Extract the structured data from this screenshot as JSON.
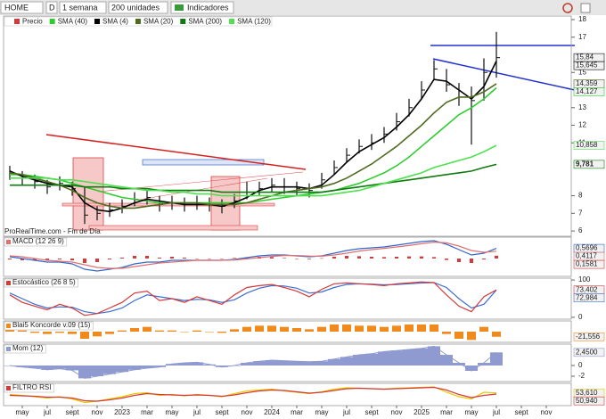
{
  "toolbar": {
    "symbol": "HOME",
    "d": "D",
    "period": "1 semana",
    "units": "200 unidades",
    "indicators": "Indicadores"
  },
  "chart_data": [
    {
      "type": "ohlc",
      "source": "ProRealTime.com - Fin de Día",
      "x": [
        3,
        4,
        5,
        6,
        7,
        8,
        9,
        10,
        11,
        12,
        13,
        14,
        15,
        16,
        17,
        18,
        19,
        20,
        21,
        22,
        23,
        24,
        25,
        26,
        27,
        28,
        29,
        30,
        31,
        32,
        33,
        34,
        35,
        36,
        37,
        38,
        39,
        40,
        41,
        42
      ],
      "ylim": [
        5.7,
        18.2
      ],
      "yticks": [
        6,
        7,
        8,
        11,
        12,
        13,
        15,
        17,
        18
      ],
      "series": [
        {
          "name": "Precio",
          "color": "#111111",
          "last_value_label": "15,84",
          "values": [
            9.3,
            9.0,
            8.8,
            8.5,
            8.7,
            8.4,
            6.9,
            7.0,
            7.2,
            7.4,
            7.8,
            7.9,
            7.5,
            7.6,
            7.5,
            7.6,
            7.5,
            7.4,
            7.7,
            8.2,
            8.4,
            8.6,
            8.5,
            8.4,
            8.3,
            8.9,
            9.6,
            10.3,
            10.8,
            11.0,
            11.5,
            12.2,
            13.0,
            14.0,
            15.2,
            14.3,
            13.6,
            13.4,
            15.0,
            15.84
          ],
          "high": [
            9.7,
            9.4,
            9.2,
            8.9,
            9.1,
            8.8,
            8.5,
            7.4,
            7.6,
            7.8,
            8.2,
            8.3,
            8.0,
            8.0,
            7.9,
            8.0,
            7.9,
            7.8,
            8.1,
            8.8,
            8.8,
            9.0,
            9.0,
            8.8,
            8.7,
            9.3,
            10.0,
            10.7,
            11.2,
            11.5,
            11.9,
            12.7,
            13.5,
            14.5,
            15.7,
            15.2,
            14.4,
            14.2,
            15.8,
            17.3
          ],
          "low": [
            8.9,
            8.6,
            8.4,
            8.1,
            8.3,
            8.0,
            6.4,
            6.6,
            6.8,
            7.0,
            7.4,
            7.5,
            7.1,
            7.2,
            7.1,
            7.2,
            7.1,
            7.0,
            7.3,
            7.8,
            8.0,
            8.2,
            8.1,
            8.0,
            7.9,
            8.4,
            9.2,
            9.9,
            10.4,
            10.6,
            11.0,
            11.7,
            12.5,
            13.5,
            14.6,
            13.9,
            13.1,
            10.9,
            13.4,
            14.7
          ]
        },
        {
          "name": "SMA (40)",
          "color": "#2fcc2f",
          "last_value_label": "14,127",
          "values": [
            9.2,
            9.2,
            9.1,
            9.0,
            8.9,
            8.7,
            8.5,
            8.3,
            8.1,
            7.9,
            7.8,
            7.7,
            7.6,
            7.6,
            7.6,
            7.6,
            7.6,
            7.6,
            7.6,
            7.6,
            7.7,
            7.8,
            7.9,
            8.0,
            8.1,
            8.2,
            8.3,
            8.5,
            8.7,
            9.0,
            9.3,
            9.7,
            10.2,
            10.8,
            11.4,
            12.0,
            12.6,
            13.0,
            13.5,
            14.127
          ]
        },
        {
          "name": "SMA (4)",
          "color": "#000000",
          "last_value_label": "15,645",
          "values": [
            9.4,
            9.1,
            8.9,
            8.7,
            8.6,
            8.5,
            7.6,
            7.2,
            7.1,
            7.3,
            7.6,
            7.8,
            7.7,
            7.6,
            7.5,
            7.5,
            7.5,
            7.4,
            7.6,
            7.9,
            8.3,
            8.5,
            8.5,
            8.5,
            8.4,
            8.6,
            9.2,
            9.9,
            10.5,
            10.9,
            11.3,
            11.9,
            12.6,
            13.5,
            14.6,
            14.5,
            14.0,
            13.5,
            14.2,
            15.645
          ]
        },
        {
          "name": "SMA (20)",
          "color": "#4f6b1f",
          "last_value_label": "14,359",
          "values": [
            9.3,
            9.2,
            9.0,
            8.8,
            8.6,
            8.3,
            7.9,
            7.6,
            7.4,
            7.3,
            7.3,
            7.4,
            7.5,
            7.6,
            7.6,
            7.6,
            7.5,
            7.5,
            7.5,
            7.6,
            7.8,
            8.0,
            8.2,
            8.3,
            8.4,
            8.5,
            8.7,
            9.0,
            9.4,
            9.8,
            10.3,
            10.8,
            11.4,
            12.0,
            12.7,
            13.3,
            13.6,
            13.6,
            13.9,
            14.359
          ]
        },
        {
          "name": "SMA (200)",
          "color": "#0f7a0f",
          "last_value_label": "9,781",
          "values": [
            8.6,
            8.6,
            8.6,
            8.6,
            8.6,
            8.6,
            8.5,
            8.5,
            8.5,
            8.4,
            8.4,
            8.4,
            8.3,
            8.3,
            8.3,
            8.3,
            8.3,
            8.2,
            8.2,
            8.2,
            8.2,
            8.2,
            8.2,
            8.2,
            8.2,
            8.2,
            8.3,
            8.4,
            8.5,
            8.6,
            8.7,
            8.8,
            8.9,
            9.0,
            9.1,
            9.2,
            9.3,
            9.4,
            9.6,
            9.781
          ]
        },
        {
          "name": "SMA (120)",
          "color": "#4ee04e",
          "last_value_label": "10,858",
          "values": [
            9.0,
            9.0,
            9.0,
            9.0,
            8.9,
            8.9,
            8.8,
            8.7,
            8.6,
            8.5,
            8.4,
            8.3,
            8.3,
            8.2,
            8.2,
            8.1,
            8.1,
            8.0,
            8.0,
            8.0,
            8.0,
            8.0,
            8.0,
            8.0,
            8.0,
            8.0,
            8.1,
            8.2,
            8.3,
            8.5,
            8.7,
            8.9,
            9.1,
            9.3,
            9.6,
            9.8,
            10.0,
            10.2,
            10.5,
            10.858
          ]
        }
      ]
    },
    {
      "type": "line",
      "title": "MACD (12 26 9)",
      "x": [
        3,
        4,
        5,
        6,
        7,
        8,
        9,
        10,
        11,
        12,
        13,
        14,
        15,
        16,
        17,
        18,
        19,
        20,
        21,
        22,
        23,
        24,
        25,
        26,
        27,
        28,
        29,
        30,
        31,
        32,
        33,
        34,
        35,
        36,
        37,
        38,
        39,
        40,
        41,
        42
      ],
      "ylim": [
        -1.0,
        1.2
      ],
      "series": [
        {
          "type": "bar",
          "color": "#d43a3a",
          "last_value_label": "0,1581",
          "values": [
            -0.05,
            -0.1,
            -0.1,
            -0.1,
            -0.05,
            -0.1,
            -0.25,
            -0.2,
            -0.05,
            0.05,
            0.15,
            0.15,
            0.05,
            0.1,
            0.05,
            0,
            0,
            0,
            0.03,
            0.07,
            0.1,
            0.08,
            0.03,
            -0.02,
            -0.04,
            0.02,
            0.1,
            0.15,
            0.13,
            0.1,
            0.08,
            0.1,
            0.12,
            0.12,
            0.08,
            -0.08,
            -0.2,
            -0.25,
            -0.05,
            0.1581
          ]
        },
        {
          "color": "#3366cc",
          "last_value_label": "0,5696",
          "values": [
            0.1,
            0,
            -0.1,
            -0.2,
            -0.2,
            -0.3,
            -0.6,
            -0.7,
            -0.6,
            -0.5,
            -0.3,
            -0.2,
            -0.2,
            -0.1,
            -0.1,
            -0.1,
            -0.1,
            -0.1,
            -0.05,
            0.05,
            0.15,
            0.2,
            0.2,
            0.15,
            0.1,
            0.15,
            0.3,
            0.45,
            0.55,
            0.6,
            0.65,
            0.75,
            0.85,
            0.95,
            1.0,
            0.8,
            0.5,
            0.2,
            0.3,
            0.5696
          ]
        },
        {
          "color": "#e07070",
          "last_value_label": "0,4117",
          "values": [
            0.15,
            0.1,
            0,
            -0.1,
            -0.15,
            -0.2,
            -0.35,
            -0.5,
            -0.55,
            -0.55,
            -0.45,
            -0.35,
            -0.25,
            -0.2,
            -0.15,
            -0.1,
            -0.1,
            -0.1,
            -0.08,
            -0.02,
            0.05,
            0.12,
            0.17,
            0.17,
            0.14,
            0.13,
            0.2,
            0.3,
            0.42,
            0.5,
            0.57,
            0.65,
            0.73,
            0.83,
            0.92,
            0.88,
            0.7,
            0.45,
            0.35,
            0.4117
          ]
        }
      ]
    },
    {
      "type": "line",
      "title": "Estocástico (26 8 5)",
      "x": [
        3,
        4,
        5,
        6,
        7,
        8,
        9,
        10,
        11,
        12,
        13,
        14,
        15,
        16,
        17,
        18,
        19,
        20,
        21,
        22,
        23,
        24,
        25,
        26,
        27,
        28,
        29,
        30,
        31,
        32,
        33,
        34,
        35,
        36,
        37,
        38,
        39,
        40,
        41,
        42
      ],
      "ylim": [
        -5,
        105
      ],
      "yticks": [
        0,
        100
      ],
      "series": [
        {
          "color": "#3b6ed0",
          "last_value_label": "72,984",
          "values": [
            65,
            50,
            35,
            25,
            28,
            27,
            15,
            10,
            15,
            25,
            45,
            60,
            55,
            50,
            45,
            48,
            47,
            40,
            47,
            65,
            78,
            85,
            84,
            78,
            65,
            68,
            80,
            88,
            90,
            89,
            87,
            88,
            90,
            92,
            93,
            80,
            50,
            25,
            35,
            72.984
          ]
        },
        {
          "color": "#d43a3a",
          "last_value_label": "73,402",
          "values": [
            60,
            40,
            30,
            20,
            35,
            25,
            5,
            10,
            25,
            40,
            65,
            70,
            45,
            50,
            40,
            55,
            45,
            35,
            60,
            80,
            85,
            88,
            80,
            70,
            55,
            75,
            90,
            92,
            90,
            88,
            85,
            90,
            92,
            95,
            93,
            60,
            30,
            15,
            55,
            73.402
          ]
        }
      ]
    },
    {
      "type": "bar",
      "title": "Blai5 Koncorde v.09 (15)",
      "x": [
        3,
        4,
        5,
        6,
        7,
        8,
        9,
        10,
        11,
        12,
        13,
        14,
        15,
        16,
        17,
        18,
        19,
        20,
        21,
        22,
        23,
        24,
        25,
        26,
        27,
        28,
        29,
        30,
        31,
        32,
        33,
        34,
        35,
        36,
        37,
        38,
        39,
        40,
        41,
        42
      ],
      "ylim": [
        -45,
        45
      ],
      "series": [
        {
          "color": "#f08a1c",
          "last_value_label": "-21,556",
          "values": [
            10,
            5,
            -5,
            -10,
            -5,
            -10,
            -30,
            -20,
            -10,
            5,
            15,
            20,
            5,
            5,
            0,
            5,
            0,
            -5,
            10,
            20,
            25,
            25,
            20,
            15,
            10,
            20,
            30,
            30,
            25,
            25,
            20,
            25,
            30,
            30,
            30,
            -10,
            -30,
            -35,
            20,
            -21.556
          ]
        }
      ]
    },
    {
      "type": "area",
      "title": "Mom (12)",
      "x": [
        3,
        4,
        5,
        6,
        7,
        8,
        9,
        10,
        11,
        12,
        13,
        14,
        15,
        16,
        17,
        18,
        19,
        20,
        21,
        22,
        23,
        24,
        25,
        26,
        27,
        28,
        29,
        30,
        31,
        32,
        33,
        34,
        35,
        36,
        37,
        38,
        39,
        40,
        41,
        42
      ],
      "ylim": [
        -3,
        4
      ],
      "yticks": [
        0,
        -2
      ],
      "series": [
        {
          "color": "#8e9ad0",
          "last_value_label": "2,4500",
          "values": [
            0,
            -0.3,
            -0.5,
            -0.8,
            -0.6,
            -0.9,
            -2.4,
            -2.0,
            -1.6,
            -1.2,
            -0.8,
            -0.5,
            -0.3,
            0.3,
            0.5,
            0.6,
            0.2,
            -0.3,
            0.0,
            0.5,
            0.8,
            1.0,
            0.9,
            0.8,
            0.7,
            0.8,
            1.2,
            1.6,
            2.0,
            2.2,
            2.6,
            2.8,
            3.0,
            3.2,
            3.6,
            2.0,
            0.5,
            -1.0,
            0.5,
            2.45
          ]
        }
      ]
    },
    {
      "type": "line",
      "title": "FILTRO RSI",
      "x": [
        3,
        4,
        5,
        6,
        7,
        8,
        9,
        10,
        11,
        12,
        13,
        14,
        15,
        16,
        17,
        18,
        19,
        20,
        21,
        22,
        23,
        24,
        25,
        26,
        27,
        28,
        29,
        30,
        31,
        32,
        33,
        34,
        35,
        36,
        37,
        38,
        39,
        40,
        41,
        42
      ],
      "ylim": [
        25,
        75
      ],
      "xlim": [
        2.5,
        48
      ],
      "xticks": [
        {
          "value": 4,
          "label": "may"
        },
        {
          "value": 6,
          "label": "jul"
        },
        {
          "value": 8,
          "label": "sept"
        },
        {
          "value": 10,
          "label": "nov"
        },
        {
          "value": 12,
          "label": "2023"
        },
        {
          "value": 14,
          "label": "mar"
        },
        {
          "value": 16,
          "label": "may"
        },
        {
          "value": 18,
          "label": "jul"
        },
        {
          "value": 20,
          "label": "sept"
        },
        {
          "value": 22,
          "label": "nov"
        },
        {
          "value": 24,
          "label": "2024"
        },
        {
          "value": 26,
          "label": "mar"
        },
        {
          "value": 28,
          "label": "may"
        },
        {
          "value": 30,
          "label": "jul"
        },
        {
          "value": 32,
          "label": "sept"
        },
        {
          "value": 34,
          "label": "nov"
        },
        {
          "value": 36,
          "label": "2025"
        },
        {
          "value": 38,
          "label": "mar"
        },
        {
          "value": 40,
          "label": "may"
        },
        {
          "value": 42,
          "label": "jul"
        },
        {
          "value": 44,
          "label": "sept"
        },
        {
          "value": 46,
          "label": "nov"
        }
      ],
      "series": [
        {
          "color": "#e8c800",
          "last_value_label": "53,610",
          "values": [
            50,
            48,
            45,
            42,
            45,
            40,
            32,
            35,
            40,
            45,
            52,
            54,
            48,
            50,
            47,
            50,
            48,
            45,
            52,
            58,
            60,
            62,
            58,
            55,
            52,
            56,
            62,
            65,
            64,
            63,
            62,
            64,
            65,
            66,
            67,
            55,
            45,
            40,
            55,
            53.61
          ]
        },
        {
          "color": "#d43a3a",
          "last_value_label": "50,940",
          "values": [
            48,
            47,
            46,
            44,
            44,
            42,
            36,
            35,
            38,
            42,
            48,
            52,
            50,
            49,
            48,
            49,
            48,
            46,
            49,
            54,
            58,
            60,
            59,
            56,
            53,
            55,
            59,
            63,
            64,
            63,
            62,
            63,
            64,
            65,
            66,
            60,
            50,
            43,
            48,
            50.94
          ]
        }
      ]
    }
  ]
}
